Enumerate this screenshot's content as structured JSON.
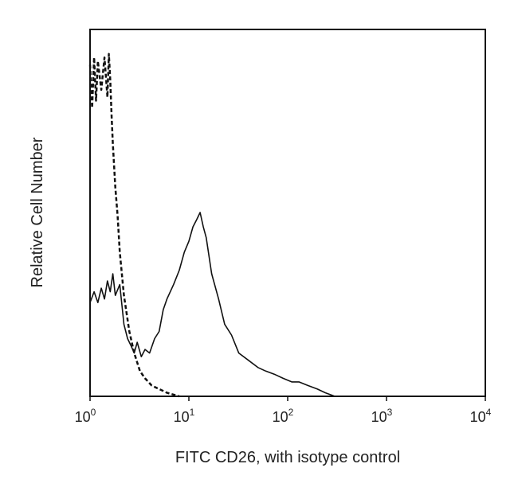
{
  "chart_data": {
    "type": "line",
    "title": "",
    "xlabel": "FITC CD26, with isotype control",
    "ylabel": "Relative Cell Number",
    "x_scale": "log",
    "xlim": [
      1,
      10000
    ],
    "ylim": [
      0,
      1
    ],
    "grid": false,
    "legend": "none",
    "x_ticks": [
      {
        "base": "10",
        "exp": "0",
        "value": 1
      },
      {
        "base": "10",
        "exp": "1",
        "value": 10
      },
      {
        "base": "10",
        "exp": "2",
        "value": 100
      },
      {
        "base": "10",
        "exp": "3",
        "value": 1000
      },
      {
        "base": "10",
        "exp": "4",
        "value": 10000
      }
    ],
    "series": [
      {
        "style": "solid",
        "color": "#111111",
        "x": [
          1.0,
          1.1,
          1.2,
          1.3,
          1.4,
          1.5,
          1.6,
          1.7,
          1.8,
          2.0,
          2.2,
          2.4,
          2.6,
          2.8,
          3.0,
          3.3,
          3.6,
          4.0,
          4.5,
          5.0,
          5.5,
          6.0,
          7.0,
          8.0,
          9.0,
          10,
          11,
          12,
          13,
          14,
          15,
          17,
          20,
          23,
          27,
          32,
          40,
          50,
          60,
          75,
          90,
          110,
          130,
          160,
          200,
          240,
          300
        ],
        "y": [
          0.26,
          0.29,
          0.26,
          0.3,
          0.27,
          0.32,
          0.29,
          0.34,
          0.28,
          0.31,
          0.2,
          0.16,
          0.14,
          0.12,
          0.15,
          0.11,
          0.13,
          0.12,
          0.16,
          0.18,
          0.24,
          0.27,
          0.31,
          0.35,
          0.4,
          0.43,
          0.47,
          0.49,
          0.51,
          0.47,
          0.44,
          0.34,
          0.27,
          0.2,
          0.17,
          0.12,
          0.1,
          0.08,
          0.07,
          0.06,
          0.05,
          0.04,
          0.04,
          0.03,
          0.02,
          0.01,
          0.0
        ]
      },
      {
        "style": "dashed",
        "color": "#111111",
        "x": [
          1.0,
          1.05,
          1.1,
          1.15,
          1.2,
          1.3,
          1.4,
          1.5,
          1.55,
          1.6,
          1.65,
          1.7,
          1.8,
          1.9,
          2.0,
          2.2,
          2.5,
          2.8,
          3.2,
          3.6,
          4.2,
          5.0,
          6.0,
          8.0
        ],
        "y": [
          0.92,
          0.8,
          0.94,
          0.82,
          0.93,
          0.85,
          0.94,
          0.83,
          0.95,
          0.88,
          0.78,
          0.7,
          0.58,
          0.5,
          0.4,
          0.28,
          0.18,
          0.12,
          0.07,
          0.05,
          0.03,
          0.02,
          0.01,
          0.0
        ]
      }
    ]
  }
}
